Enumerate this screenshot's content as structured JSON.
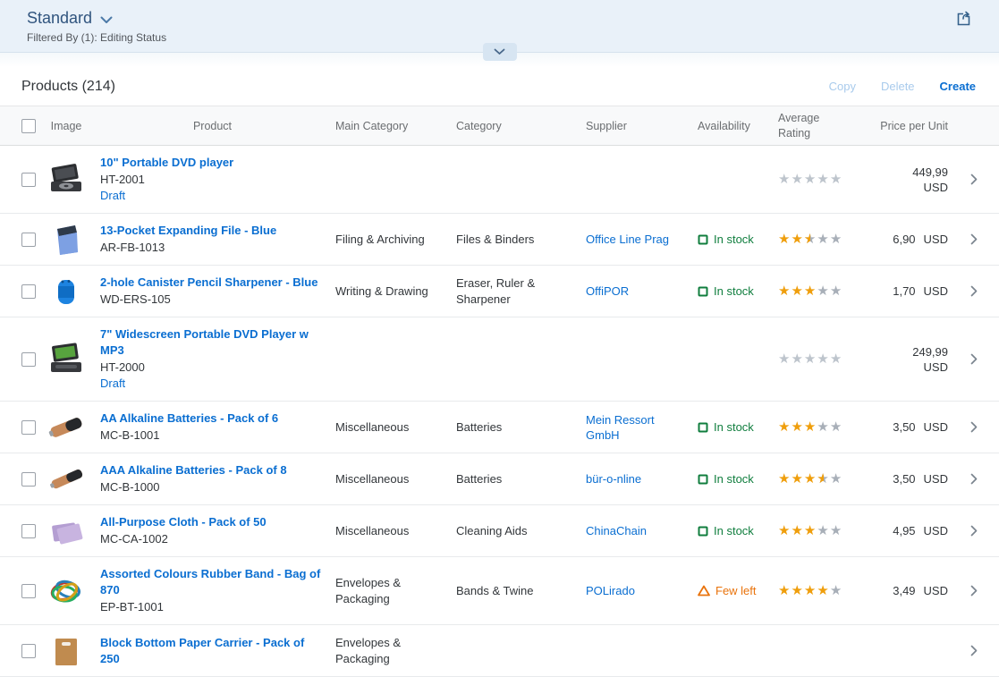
{
  "page": {
    "variant_title": "Standard",
    "filtered_by": "Filtered By (1): Editing Status"
  },
  "toolbar": {
    "title": "Products (214)",
    "copy_label": "Copy",
    "delete_label": "Delete",
    "create_label": "Create"
  },
  "colors": {
    "link_blue": "#0a6ed1",
    "star_orange": "#ef9e0c",
    "in_stock_green": "#107e3e",
    "few_left_orange": "#e9730c",
    "filterbar_bg": "#e9f1f9"
  },
  "icons": {
    "variant_caret": "chevron-down-icon",
    "share": "share-icon",
    "expand_header": "chevron-down-icon",
    "in_stock": "square-outline-icon",
    "few_left": "warning-triangle-icon",
    "row_nav": "chevron-right-icon"
  },
  "table": {
    "columns": [
      "",
      "Image",
      "Product",
      "Main Category",
      "Category",
      "Supplier",
      "Availability",
      "Average Rating",
      "Price per Unit"
    ],
    "rows": [
      {
        "image": "dvd-player",
        "name": "10\" Portable DVD player",
        "id": "HT-2001",
        "status": "Draft",
        "main_category": "",
        "category": "",
        "supplier": "",
        "availability": "",
        "availability_state": "",
        "rating": 0,
        "rated": false,
        "price": "449,99",
        "currency": "USD"
      },
      {
        "image": "expanding-file",
        "name": "13-Pocket Expanding File - Blue",
        "id": "AR-FB-1013",
        "status": "",
        "main_category": "Filing & Archiving",
        "category": "Files & Binders",
        "supplier": "Office Line Prag",
        "availability": "In stock",
        "availability_state": "in-stock",
        "rating": 2.5,
        "rated": true,
        "price": "6,90",
        "currency": "USD"
      },
      {
        "image": "pencil-sharpener",
        "name": "2-hole Canister Pencil Sharpener - Blue",
        "id": "WD-ERS-105",
        "status": "",
        "main_category": "Writing & Drawing",
        "category": "Eraser, Ruler & Sharpener",
        "supplier": "OffiPOR",
        "availability": "In stock",
        "availability_state": "in-stock",
        "rating": 3,
        "rated": true,
        "price": "1,70",
        "currency": "USD"
      },
      {
        "image": "dvd-player-green",
        "name": "7\" Widescreen Portable DVD Player w MP3",
        "id": "HT-2000",
        "status": "Draft",
        "main_category": "",
        "category": "",
        "supplier": "",
        "availability": "",
        "availability_state": "",
        "rating": 0,
        "rated": false,
        "price": "249,99",
        "currency": "USD"
      },
      {
        "image": "battery-aa",
        "name": "AA Alkaline Batteries - Pack of 6",
        "id": "MC-B-1001",
        "status": "",
        "main_category": "Miscellaneous",
        "category": "Batteries",
        "supplier": "Mein Ressort GmbH",
        "availability": "In stock",
        "availability_state": "in-stock",
        "rating": 3,
        "rated": true,
        "price": "3,50",
        "currency": "USD"
      },
      {
        "image": "battery-aaa",
        "name": "AAA Alkaline Batteries - Pack of 8",
        "id": "MC-B-1000",
        "status": "",
        "main_category": "Miscellaneous",
        "category": "Batteries",
        "supplier": "bür-o-nline",
        "availability": "In stock",
        "availability_state": "in-stock",
        "rating": 3.5,
        "rated": true,
        "price": "3,50",
        "currency": "USD"
      },
      {
        "image": "cloth",
        "name": "All-Purpose Cloth - Pack of 50",
        "id": "MC-CA-1002",
        "status": "",
        "main_category": "Miscellaneous",
        "category": "Cleaning Aids",
        "supplier": "ChinaChain",
        "availability": "In stock",
        "availability_state": "in-stock",
        "rating": 3,
        "rated": true,
        "price": "4,95",
        "currency": "USD"
      },
      {
        "image": "rubber-bands",
        "name": "Assorted Colours Rubber Band - Bag of 870",
        "id": "EP-BT-1001",
        "status": "",
        "main_category": "Envelopes & Packaging",
        "category": "Bands & Twine",
        "supplier": "POLirado",
        "availability": "Few left",
        "availability_state": "few-left",
        "rating": 4,
        "rated": true,
        "price": "3,49",
        "currency": "USD"
      },
      {
        "image": "paper-carrier",
        "name": "Block Bottom Paper Carrier - Pack of 250",
        "id": "",
        "status": "",
        "main_category": "Envelopes & Packaging",
        "category": "",
        "supplier": "",
        "availability": "",
        "availability_state": "",
        "rating": null,
        "rated": false,
        "price": "",
        "currency": ""
      }
    ]
  }
}
